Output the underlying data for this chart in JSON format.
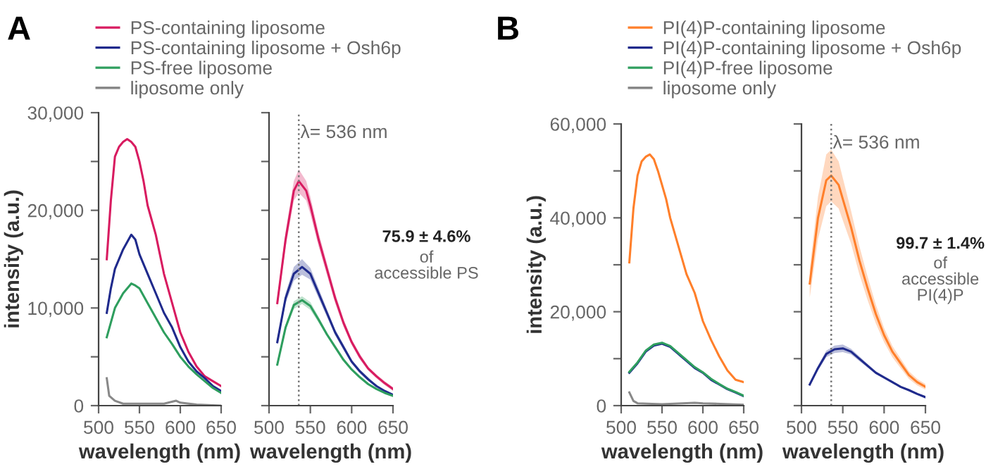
{
  "chart_data": [
    {
      "type": "line",
      "title": "A",
      "xlabel": "wavelength (nm)",
      "ylabel": "intensity (a.u.)",
      "legend": "top",
      "xlim": [
        500,
        650
      ],
      "xticks": [
        500,
        550,
        600,
        650
      ],
      "ylim": [
        0,
        30000
      ],
      "yticks": [
        {
          "value": 0,
          "label": "0"
        },
        {
          "value": 5000,
          "label": null
        },
        {
          "value": 10000,
          "label": "10,000"
        },
        {
          "value": 15000,
          "label": null
        },
        {
          "value": 20000,
          "label": "20,000"
        },
        {
          "value": 25000,
          "label": null
        },
        {
          "value": 30000,
          "label": "30,000"
        }
      ],
      "series": [
        {
          "name": "PS-containing liposome",
          "color": "#d81b60",
          "x": [
            510,
            515,
            520,
            525,
            530,
            535,
            540,
            545,
            550,
            555,
            560,
            565,
            570,
            575,
            580,
            585,
            590,
            595,
            600,
            605,
            610,
            620,
            630,
            640,
            650
          ],
          "values": [
            15000,
            21000,
            25500,
            26500,
            27000,
            27300,
            27000,
            26500,
            25000,
            23000,
            20500,
            19000,
            17500,
            15500,
            13500,
            12000,
            10500,
            9000,
            7500,
            6500,
            5500,
            4000,
            3000,
            2500,
            2000
          ]
        },
        {
          "name": "PS-containing liposome + Osh6p",
          "color": "#1f2a8c",
          "x": [
            510,
            515,
            520,
            530,
            540,
            545,
            550,
            560,
            570,
            580,
            590,
            600,
            610,
            620,
            630,
            640,
            650
          ],
          "values": [
            9500,
            12000,
            14000,
            16000,
            17500,
            17000,
            15500,
            13500,
            11500,
            9500,
            8000,
            6000,
            4500,
            3500,
            2800,
            2000,
            1500
          ]
        },
        {
          "name": "PS-free liposome",
          "color": "#2e9e5e",
          "x": [
            510,
            515,
            520,
            530,
            540,
            545,
            550,
            560,
            570,
            580,
            590,
            600,
            610,
            620,
            630,
            640,
            650
          ],
          "values": [
            7000,
            8500,
            10000,
            11500,
            12500,
            12300,
            12000,
            10500,
            9000,
            7500,
            6300,
            5000,
            4000,
            3200,
            2500,
            1800,
            1300
          ]
        },
        {
          "name": "liposome only",
          "color": "#888888",
          "x": [
            510,
            513,
            520,
            530,
            550,
            580,
            595,
            600,
            620,
            650
          ],
          "values": [
            2800,
            1000,
            500,
            200,
            200,
            200,
            500,
            300,
            100,
            0
          ]
        }
      ]
    },
    {
      "type": "line",
      "xlabel": "wavelength (nm)",
      "tick_labels": "x",
      "xlim": [
        500,
        650
      ],
      "xticks": [
        500,
        550,
        600,
        650
      ],
      "ylim": [
        0,
        30000
      ],
      "yticks": [
        {
          "value": 0,
          "label": null
        },
        {
          "value": 5000,
          "label": null
        },
        {
          "value": 10000,
          "label": null
        },
        {
          "value": 15000,
          "label": null
        },
        {
          "value": 20000,
          "label": null
        },
        {
          "value": 25000,
          "label": null
        },
        {
          "value": 30000,
          "label": null
        }
      ],
      "ref_lines": [
        {
          "axis": "x",
          "value": 536,
          "label": "λ= 536 nm",
          "color": "#777777",
          "line_style": "dotted"
        }
      ],
      "annotations": [
        "75.9 ± 4.6%",
        "of\naccessible PS"
      ],
      "series": [
        {
          "color": "#d81b60",
          "x": [
            510,
            520,
            530,
            536,
            545,
            550,
            560,
            570,
            580,
            590,
            600,
            610,
            620,
            630,
            640,
            650
          ],
          "values": [
            10500,
            17000,
            22000,
            23000,
            22000,
            20500,
            17000,
            14000,
            11000,
            8500,
            6500,
            5000,
            3800,
            3000,
            2300,
            1700
          ],
          "lower": [
            10000,
            16200,
            21000,
            21800,
            21000,
            19600,
            16300,
            13400,
            10500,
            8100,
            6200,
            4700,
            3600,
            2800,
            2100,
            1500
          ],
          "upper": [
            11000,
            17800,
            23000,
            24200,
            23000,
            21400,
            17700,
            14600,
            11500,
            8900,
            6800,
            5300,
            4000,
            3200,
            2500,
            1900
          ]
        },
        {
          "color": "#1f2a8c",
          "x": [
            510,
            520,
            530,
            540,
            550,
            560,
            570,
            580,
            590,
            600,
            610,
            620,
            630,
            640,
            650
          ],
          "values": [
            6500,
            11000,
            13500,
            14200,
            13500,
            11500,
            9500,
            7500,
            6000,
            4500,
            3500,
            2700,
            2000,
            1500,
            1100
          ],
          "lower": [
            6200,
            10500,
            12800,
            13400,
            12900,
            11000,
            9100,
            7200,
            5700,
            4300,
            3300,
            2500,
            1900,
            1400,
            1000
          ],
          "upper": [
            6800,
            11500,
            14200,
            15000,
            14100,
            12000,
            9900,
            7800,
            6300,
            4700,
            3700,
            2900,
            2100,
            1600,
            1200
          ]
        },
        {
          "color": "#2e9e5e",
          "x": [
            510,
            520,
            530,
            540,
            550,
            560,
            570,
            580,
            590,
            600,
            610,
            620,
            630,
            640,
            650
          ],
          "values": [
            4200,
            8000,
            10300,
            10800,
            10200,
            8800,
            7300,
            6000,
            4700,
            3700,
            2900,
            2200,
            1700,
            1300,
            1000
          ],
          "lower": [
            4000,
            7700,
            9900,
            10400,
            9800,
            8500,
            7100,
            5800,
            4500,
            3600,
            2800,
            2100,
            1600,
            1200,
            900
          ],
          "upper": [
            4400,
            8300,
            10700,
            11200,
            10600,
            9100,
            7500,
            6200,
            4900,
            3800,
            3000,
            2300,
            1800,
            1400,
            1100
          ]
        }
      ]
    },
    {
      "type": "line",
      "title": "B",
      "xlabel": "wavelength (nm)",
      "ylabel": "intensity (a.u.)",
      "legend": "top",
      "xlim": [
        500,
        650
      ],
      "xticks": [
        500,
        550,
        600,
        650
      ],
      "ylim": [
        0,
        60000
      ],
      "yticks": [
        {
          "value": 0,
          "label": "0"
        },
        {
          "value": 10000,
          "label": null
        },
        {
          "value": 20000,
          "label": "20,000"
        },
        {
          "value": 30000,
          "label": null
        },
        {
          "value": 40000,
          "label": "40,000"
        },
        {
          "value": 50000,
          "label": null
        },
        {
          "value": 60000,
          "label": "60,000"
        }
      ],
      "series": [
        {
          "name": "PI(4)P-containing liposome",
          "color": "#ff7f2a",
          "x": [
            510,
            515,
            520,
            525,
            530,
            535,
            540,
            545,
            550,
            555,
            560,
            565,
            570,
            580,
            590,
            600,
            610,
            620,
            630,
            640,
            650
          ],
          "values": [
            30500,
            42000,
            49000,
            52000,
            53000,
            53500,
            52500,
            50000,
            47000,
            44000,
            40000,
            37000,
            34000,
            28000,
            24000,
            18000,
            14000,
            10500,
            7500,
            5500,
            5000
          ]
        },
        {
          "name": "PI(4)P-containing liposome + Osh6p",
          "color": "#1f2a8c",
          "x": [
            510,
            520,
            530,
            540,
            550,
            560,
            570,
            580,
            590,
            600,
            610,
            620,
            630,
            640,
            650
          ],
          "values": [
            7000,
            9000,
            11500,
            12800,
            13200,
            12500,
            11000,
            9500,
            8000,
            7000,
            5500,
            4500,
            3500,
            2800,
            2000
          ]
        },
        {
          "name": "PI(4)P-free liposome",
          "color": "#2e9e5e",
          "x": [
            510,
            520,
            530,
            540,
            550,
            560,
            570,
            580,
            590,
            600,
            610,
            620,
            630,
            640,
            650
          ],
          "values": [
            7200,
            9200,
            11700,
            13000,
            13400,
            12700,
            11200,
            9700,
            8200,
            7100,
            5700,
            4600,
            3600,
            2900,
            2100
          ]
        },
        {
          "name": "liposome only",
          "color": "#888888",
          "x": [
            510,
            515,
            520,
            550,
            590,
            600,
            650
          ],
          "values": [
            2800,
            1000,
            500,
            300,
            600,
            500,
            200
          ]
        }
      ]
    },
    {
      "type": "line",
      "xlabel": "wavelength (nm)",
      "tick_labels": "x",
      "xlim": [
        500,
        650
      ],
      "xticks": [
        500,
        550,
        600,
        650
      ],
      "ylim": [
        0,
        60000
      ],
      "yticks": [
        {
          "value": 0,
          "label": null
        },
        {
          "value": 10000,
          "label": null
        },
        {
          "value": 20000,
          "label": null
        },
        {
          "value": 30000,
          "label": null
        },
        {
          "value": 40000,
          "label": null
        },
        {
          "value": 50000,
          "label": null
        },
        {
          "value": 60000,
          "label": null
        }
      ],
      "ref_lines": [
        {
          "axis": "x",
          "value": 536,
          "label": "λ= 536 nm",
          "color": "#777777",
          "line_style": "dotted"
        }
      ],
      "annotations": [
        "99.7 ± 1.4%",
        "of\naccessible\nPI(4)P"
      ],
      "series": [
        {
          "color": "#ff7f2a",
          "x": [
            510,
            520,
            530,
            536,
            545,
            550,
            560,
            570,
            580,
            590,
            600,
            610,
            620,
            630,
            640,
            650
          ],
          "values": [
            26000,
            40000,
            48000,
            49000,
            47000,
            44000,
            38000,
            31000,
            25000,
            19500,
            15000,
            11500,
            9000,
            6500,
            5000,
            4000
          ],
          "lower": [
            23000,
            35500,
            42500,
            43500,
            42000,
            39500,
            34500,
            28000,
            22500,
            17500,
            13500,
            10300,
            8000,
            5700,
            4300,
            3400
          ],
          "upper": [
            29000,
            44500,
            53500,
            54500,
            52000,
            48500,
            41500,
            34000,
            27500,
            21500,
            16500,
            12700,
            10000,
            7300,
            5700,
            4600
          ]
        },
        {
          "color": "#1f2a8c",
          "x": [
            510,
            520,
            530,
            540,
            550,
            560,
            570,
            580,
            590,
            600,
            610,
            620,
            630,
            640,
            650
          ],
          "values": [
            4500,
            8000,
            11000,
            12000,
            12200,
            11500,
            10000,
            8500,
            7000,
            6000,
            5000,
            4000,
            3300,
            2500,
            1800
          ],
          "lower": [
            4200,
            7500,
            10300,
            11200,
            11400,
            10900,
            9500,
            8100,
            6700,
            5700,
            4800,
            3800,
            3100,
            2300,
            1600
          ],
          "upper": [
            4800,
            8500,
            11700,
            12800,
            13000,
            12100,
            10500,
            8900,
            7300,
            6300,
            5200,
            4200,
            3500,
            2700,
            2000
          ]
        }
      ]
    }
  ]
}
